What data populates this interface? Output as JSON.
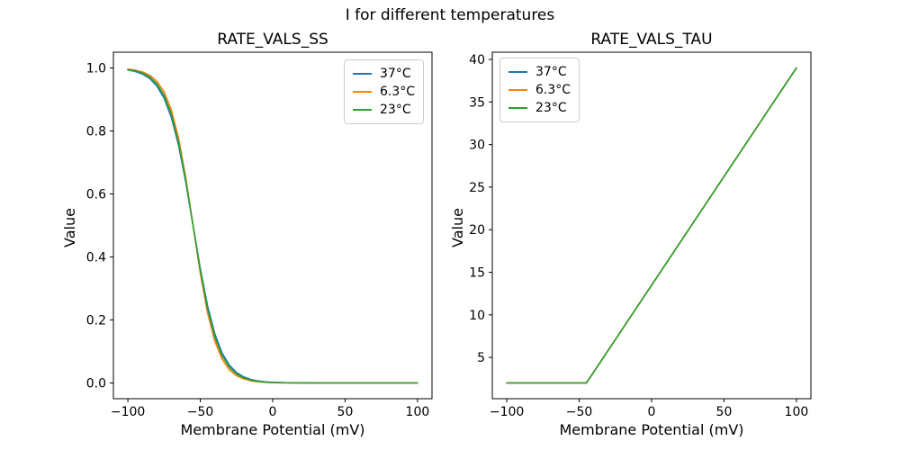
{
  "figure": {
    "suptitle": "I for different temperatures",
    "background_color": "#ffffff",
    "text_color": "#000000",
    "spine_color": "#000000"
  },
  "chart_data": [
    {
      "type": "line",
      "title": "RATE_VALS_SS",
      "xlabel": "Membrane Potential (mV)",
      "ylabel": "Value",
      "xlim": [
        -110,
        110
      ],
      "ylim": [
        -0.05,
        1.05
      ],
      "grid": false,
      "legend_position": "upper-right",
      "xticks": {
        "values": [
          -100,
          -50,
          0,
          50,
          100
        ],
        "labels": [
          "−100",
          "−50",
          "0",
          "50",
          "100"
        ]
      },
      "yticks": {
        "values": [
          0.0,
          0.2,
          0.4,
          0.6,
          0.8,
          1.0
        ],
        "labels": [
          "0.0",
          "0.2",
          "0.4",
          "0.6",
          "0.8",
          "1.0"
        ]
      },
      "x": [
        -100,
        -95,
        -90,
        -85,
        -80,
        -75,
        -70,
        -65,
        -60,
        -55,
        -50,
        -45,
        -40,
        -35,
        -30,
        -25,
        -20,
        -15,
        -10,
        -5,
        0,
        5,
        10,
        15,
        20,
        25,
        30,
        35,
        40,
        45,
        50,
        55,
        60,
        65,
        70,
        75,
        80,
        85,
        90,
        95,
        100
      ],
      "series": [
        {
          "name": "37°C",
          "color": "#1f77b4",
          "values": [
            0.9937,
            0.9889,
            0.9808,
            0.9668,
            0.9431,
            0.9044,
            0.8435,
            0.7547,
            0.637,
            0.5,
            0.363,
            0.2453,
            0.1565,
            0.0956,
            0.0569,
            0.0332,
            0.0192,
            0.011,
            0.0063,
            0.0036,
            0.0021,
            0.0012,
            0.0007,
            0.0004,
            0.0002,
            0.0001,
            0.0001,
            0.0,
            0.0,
            0.0,
            0.0,
            0.0,
            0.0,
            0.0,
            0.0,
            0.0,
            0.0,
            0.0,
            0.0,
            0.0,
            0.0
          ]
        },
        {
          "name": "6.3°C",
          "color": "#ff7f0e",
          "values": [
            0.9964,
            0.9933,
            0.9876,
            0.977,
            0.9579,
            0.9241,
            0.867,
            0.7773,
            0.6513,
            0.5,
            0.3487,
            0.2227,
            0.133,
            0.0759,
            0.0421,
            0.023,
            0.0124,
            0.0067,
            0.0036,
            0.0019,
            0.001,
            0.0006,
            0.0003,
            0.0002,
            0.0001,
            0.0001,
            0.0,
            0.0,
            0.0,
            0.0,
            0.0,
            0.0,
            0.0,
            0.0,
            0.0,
            0.0,
            0.0,
            0.0,
            0.0,
            0.0,
            0.0
          ]
        },
        {
          "name": "23°C",
          "color": "#2ca02c",
          "values": [
            0.995,
            0.991,
            0.984,
            0.9714,
            0.9499,
            0.9132,
            0.8538,
            0.7643,
            0.6429,
            0.5,
            0.3571,
            0.2357,
            0.1462,
            0.0868,
            0.0501,
            0.0286,
            0.0161,
            0.009,
            0.005,
            0.0028,
            0.0015,
            0.0008,
            0.0004,
            0.0002,
            0.0001,
            0.0001,
            0.0,
            0.0,
            0.0,
            0.0,
            0.0,
            0.0,
            0.0,
            0.0,
            0.0,
            0.0,
            0.0,
            0.0,
            0.0,
            0.0,
            0.0
          ]
        }
      ]
    },
    {
      "type": "line",
      "title": "RATE_VALS_TAU",
      "xlabel": "Membrane Potential (mV)",
      "ylabel": "Value",
      "xlim": [
        -110,
        110
      ],
      "ylim": [
        0.15,
        40.85
      ],
      "grid": false,
      "legend_position": "upper-left",
      "xticks": {
        "values": [
          -100,
          -50,
          0,
          50,
          100
        ],
        "labels": [
          "−100",
          "−50",
          "0",
          "50",
          "100"
        ]
      },
      "yticks": {
        "values": [
          5,
          10,
          15,
          20,
          25,
          30,
          35,
          40
        ],
        "labels": [
          "5",
          "10",
          "15",
          "20",
          "25",
          "30",
          "35",
          "40"
        ]
      },
      "x": [
        -100,
        -95,
        -90,
        -85,
        -80,
        -75,
        -70,
        -65,
        -60,
        -55,
        -50,
        -45,
        -40,
        -35,
        -30,
        -25,
        -20,
        -15,
        -10,
        -5,
        0,
        5,
        10,
        15,
        20,
        25,
        30,
        35,
        40,
        45,
        50,
        55,
        60,
        65,
        70,
        75,
        80,
        85,
        90,
        95,
        100
      ],
      "series": [
        {
          "name": "37°C",
          "color": "#1f77b4",
          "values": [
            2.0,
            2.0,
            2.0,
            2.0,
            2.0,
            2.0,
            2.0,
            2.0,
            2.0,
            2.0,
            2.0,
            2.0,
            3.28,
            4.55,
            5.83,
            7.1,
            8.38,
            9.66,
            10.93,
            12.21,
            13.48,
            14.76,
            16.03,
            17.31,
            18.59,
            19.86,
            21.14,
            22.41,
            23.69,
            24.97,
            26.24,
            27.52,
            28.79,
            30.07,
            31.34,
            32.62,
            33.9,
            35.17,
            36.45,
            37.72,
            39.0
          ]
        },
        {
          "name": "6.3°C",
          "color": "#ff7f0e",
          "values": [
            2.0,
            2.0,
            2.0,
            2.0,
            2.0,
            2.0,
            2.0,
            2.0,
            2.0,
            2.0,
            2.0,
            2.0,
            3.28,
            4.55,
            5.83,
            7.1,
            8.38,
            9.66,
            10.93,
            12.21,
            13.48,
            14.76,
            16.03,
            17.31,
            18.59,
            19.86,
            21.14,
            22.41,
            23.69,
            24.97,
            26.24,
            27.52,
            28.79,
            30.07,
            31.34,
            32.62,
            33.9,
            35.17,
            36.45,
            37.72,
            39.0
          ]
        },
        {
          "name": "23°C",
          "color": "#2ca02c",
          "values": [
            2.0,
            2.0,
            2.0,
            2.0,
            2.0,
            2.0,
            2.0,
            2.0,
            2.0,
            2.0,
            2.0,
            2.0,
            3.28,
            4.55,
            5.83,
            7.1,
            8.38,
            9.66,
            10.93,
            12.21,
            13.48,
            14.76,
            16.03,
            17.31,
            18.59,
            19.86,
            21.14,
            22.41,
            23.69,
            24.97,
            26.24,
            27.52,
            28.79,
            30.07,
            31.34,
            32.62,
            33.9,
            35.17,
            36.45,
            37.72,
            39.0
          ]
        }
      ]
    }
  ]
}
